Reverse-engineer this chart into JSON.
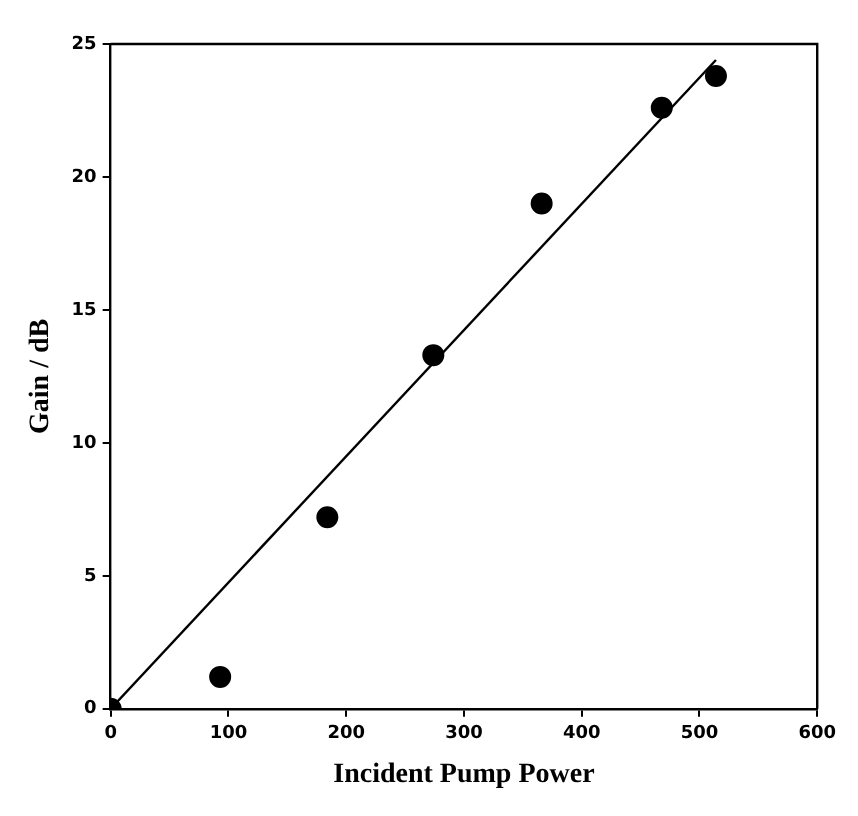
{
  "chart_data": {
    "type": "scatter",
    "xlabel": "Incident Pump Power",
    "ylabel": "Gain / dB",
    "xlim": [
      0,
      600
    ],
    "xticks": [
      0,
      100,
      200,
      300,
      400,
      500,
      600
    ],
    "ylim": [
      0,
      25
    ],
    "yticks": [
      0,
      5,
      10,
      15,
      20,
      25
    ],
    "grid": false,
    "legend": false,
    "marker": "circle",
    "series": [
      {
        "color": "#000000",
        "x": [
          0,
          93,
          184,
          274,
          366,
          468,
          514
        ],
        "values": [
          0,
          1.2,
          7.2,
          13.3,
          19.0,
          22.6,
          23.8
        ]
      },
      {
        "type": "line",
        "color": "#000000",
        "x": [
          0,
          514
        ],
        "values": [
          0,
          24.4
        ],
        "marker": "none",
        "line_style": "solid"
      }
    ]
  }
}
